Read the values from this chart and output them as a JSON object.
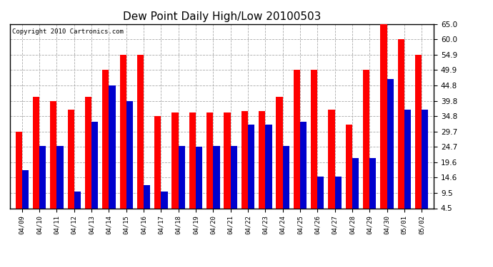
{
  "title": "Dew Point Daily High/Low 20100503",
  "copyright": "Copyright 2010 Cartronics.com",
  "dates": [
    "04/09",
    "04/10",
    "04/11",
    "04/12",
    "04/13",
    "04/14",
    "04/15",
    "04/16",
    "04/17",
    "04/18",
    "04/19",
    "04/20",
    "04/21",
    "04/22",
    "04/23",
    "04/24",
    "04/25",
    "04/26",
    "04/27",
    "04/28",
    "04/29",
    "04/30",
    "05/01",
    "05/02"
  ],
  "highs": [
    29.7,
    41.0,
    39.8,
    37.0,
    41.0,
    49.9,
    54.9,
    54.9,
    34.8,
    36.0,
    36.0,
    36.0,
    36.0,
    36.5,
    36.5,
    41.0,
    49.9,
    49.9,
    37.0,
    32.0,
    49.9,
    65.0,
    60.0,
    55.0
  ],
  "lows": [
    17.0,
    25.0,
    25.0,
    10.0,
    33.0,
    44.8,
    39.8,
    12.0,
    10.0,
    25.0,
    24.7,
    25.0,
    25.0,
    32.0,
    32.0,
    25.0,
    33.0,
    15.0,
    15.0,
    21.0,
    21.0,
    47.0,
    37.0,
    37.0
  ],
  "high_color": "#FF0000",
  "low_color": "#0000CD",
  "background_color": "#FFFFFF",
  "grid_color": "#AAAAAA",
  "ylim": [
    4.5,
    65.0
  ],
  "yticks": [
    4.5,
    9.5,
    14.6,
    19.6,
    24.7,
    29.7,
    34.8,
    39.8,
    44.8,
    49.9,
    54.9,
    60.0,
    65.0
  ],
  "title_fontsize": 11,
  "copyright_fontsize": 6.5,
  "bar_width": 0.38
}
